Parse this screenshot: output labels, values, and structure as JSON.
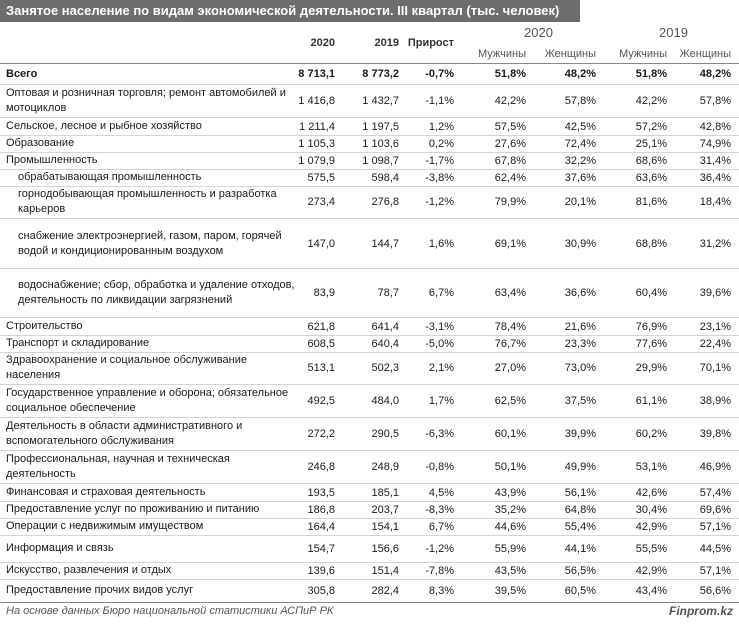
{
  "title": "Занятое население по видам экономической деятельности. III квартал (тыс. человек)",
  "headers": {
    "col_2020": "2020",
    "col_2019": "2019",
    "col_growth": "Прирост",
    "group_2020": "2020",
    "group_2019": "2019",
    "men": "Мужчины",
    "women": "Женщины"
  },
  "rows": [
    {
      "name": "Всего",
      "v2020": "8 713,1",
      "v2019": "8 773,2",
      "growth": "-0,7%",
      "m2020": "51,8%",
      "f2020": "48,2%",
      "m2019": "51,8%",
      "f2019": "48,2%"
    },
    {
      "name": "Оптовая и розничная торговля; ремонт автомобилей и мотоциклов",
      "v2020": "1 416,8",
      "v2019": "1 432,7",
      "growth": "-1,1%",
      "m2020": "42,2%",
      "f2020": "57,8%",
      "m2019": "42,2%",
      "f2019": "57,8%"
    },
    {
      "name": "Сельское, лесное и рыбное хозяйство",
      "v2020": "1 211,4",
      "v2019": "1 197,5",
      "growth": "1,2%",
      "m2020": "57,5%",
      "f2020": "42,5%",
      "m2019": "57,2%",
      "f2019": "42,8%"
    },
    {
      "name": "Образование",
      "v2020": "1 105,3",
      "v2019": "1 103,6",
      "growth": "0,2%",
      "m2020": "27,6%",
      "f2020": "72,4%",
      "m2019": "25,1%",
      "f2019": "74,9%"
    },
    {
      "name": "Промышленность",
      "v2020": "1 079,9",
      "v2019": "1 098,7",
      "growth": "-1,7%",
      "m2020": "67,8%",
      "f2020": "32,2%",
      "m2019": "68,6%",
      "f2019": "31,4%"
    },
    {
      "name": "обрабатывающая промышленность",
      "v2020": "575,5",
      "v2019": "598,4",
      "growth": "-3,8%",
      "m2020": "62,4%",
      "f2020": "37,6%",
      "m2019": "63,6%",
      "f2019": "36,4%"
    },
    {
      "name": "горнодобывающая промышленность и разработка карьеров",
      "v2020": "273,4",
      "v2019": "276,8",
      "growth": "-1,2%",
      "m2020": "79,9%",
      "f2020": "20,1%",
      "m2019": "81,6%",
      "f2019": "18,4%"
    },
    {
      "name": "снабжение электроэнергией, газом, паром, горячей водой и кондиционированным воздухом",
      "v2020": "147,0",
      "v2019": "144,7",
      "growth": "1,6%",
      "m2020": "69,1%",
      "f2020": "30,9%",
      "m2019": "68,8%",
      "f2019": "31,2%"
    },
    {
      "name": "водоснабжение; сбор, обработка и удаление отходов, деятельность по ликвидации загрязнений",
      "v2020": "83,9",
      "v2019": "78,7",
      "growth": "6,7%",
      "m2020": "63,4%",
      "f2020": "36,6%",
      "m2019": "60,4%",
      "f2019": "39,6%"
    },
    {
      "name": "Строительство",
      "v2020": "621,8",
      "v2019": "641,4",
      "growth": "-3,1%",
      "m2020": "78,4%",
      "f2020": "21,6%",
      "m2019": "76,9%",
      "f2019": "23,1%"
    },
    {
      "name": "Транспорт и складирование",
      "v2020": "608,5",
      "v2019": "640,4",
      "growth": "-5,0%",
      "m2020": "76,7%",
      "f2020": "23,3%",
      "m2019": "77,6%",
      "f2019": "22,4%"
    },
    {
      "name": "Здравоохранение и социальное обслуживание населения",
      "v2020": "513,1",
      "v2019": "502,3",
      "growth": "2,1%",
      "m2020": "27,0%",
      "f2020": "73,0%",
      "m2019": "29,9%",
      "f2019": "70,1%"
    },
    {
      "name": "Государственное управление и оборона; обязательное социальное обеспечение",
      "v2020": "492,5",
      "v2019": "484,0",
      "growth": "1,7%",
      "m2020": "62,5%",
      "f2020": "37,5%",
      "m2019": "61,1%",
      "f2019": "38,9%"
    },
    {
      "name": "Деятельность в области административного и вспомогательного обслуживания",
      "v2020": "272,2",
      "v2019": "290,5",
      "growth": "-6,3%",
      "m2020": "60,1%",
      "f2020": "39,9%",
      "m2019": "60,2%",
      "f2019": "39,8%"
    },
    {
      "name": "Профессиональная, научная и техническая деятельность",
      "v2020": "246,8",
      "v2019": "248,9",
      "growth": "-0,8%",
      "m2020": "50,1%",
      "f2020": "49,9%",
      "m2019": "53,1%",
      "f2019": "46,9%"
    },
    {
      "name": "Финансовая и страховая деятельность",
      "v2020": "193,5",
      "v2019": "185,1",
      "growth": "4,5%",
      "m2020": "43,9%",
      "f2020": "56,1%",
      "m2019": "42,6%",
      "f2019": "57,4%"
    },
    {
      "name": "Предоставление услуг по проживанию и питанию",
      "v2020": "186,8",
      "v2019": "203,7",
      "growth": "-8,3%",
      "m2020": "35,2%",
      "f2020": "64,8%",
      "m2019": "30,4%",
      "f2019": "69,6%"
    },
    {
      "name": "Операции с недвижимым имуществом",
      "v2020": "164,4",
      "v2019": "154,1",
      "growth": "6,7%",
      "m2020": "44,6%",
      "f2020": "55,4%",
      "m2019": "42,9%",
      "f2019": "57,1%"
    },
    {
      "name": "Информация и связь",
      "v2020": "154,7",
      "v2019": "156,6",
      "growth": "-1,2%",
      "m2020": "55,9%",
      "f2020": "44,1%",
      "m2019": "55,5%",
      "f2019": "44,5%"
    },
    {
      "name": "Искусство, развлечения и отдых",
      "v2020": "139,6",
      "v2019": "151,4",
      "growth": "-7,8%",
      "m2020": "43,5%",
      "f2020": "56,5%",
      "m2019": "42,9%",
      "f2019": "57,1%"
    },
    {
      "name": "Предоставление прочих видов услуг",
      "v2020": "305,8",
      "v2019": "282,4",
      "growth": "8,3%",
      "m2020": "39,5%",
      "f2020": "60,5%",
      "m2019": "43,4%",
      "f2019": "56,6%"
    }
  ],
  "footer": {
    "source": "На основе данных Бюро национальной статистики АСПиР РК",
    "brand": "Finprom.kz"
  }
}
